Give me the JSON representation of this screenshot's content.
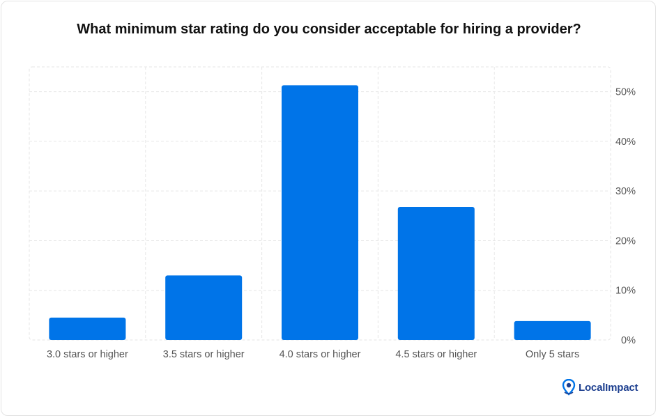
{
  "chart_data": {
    "type": "bar",
    "title": "What minimum star rating do you consider acceptable for hiring a provider?",
    "categories": [
      "3.0 stars or higher",
      "3.5 stars or higher",
      "4.0 stars or higher",
      "4.5 stars or higher",
      "Only 5 stars"
    ],
    "values": [
      4.5,
      13,
      51.3,
      26.8,
      3.8
    ],
    "ylim": [
      0,
      55
    ],
    "yticks": [
      0,
      10,
      20,
      30,
      40,
      50
    ],
    "ytick_labels": [
      "0%",
      "10%",
      "20%",
      "30%",
      "40%",
      "50%"
    ],
    "y_axis_side": "right",
    "grid": true,
    "bar_color": "#0074e8"
  },
  "brand": {
    "name": "LocalImpact",
    "logo_icon": "map-pin-icon"
  }
}
